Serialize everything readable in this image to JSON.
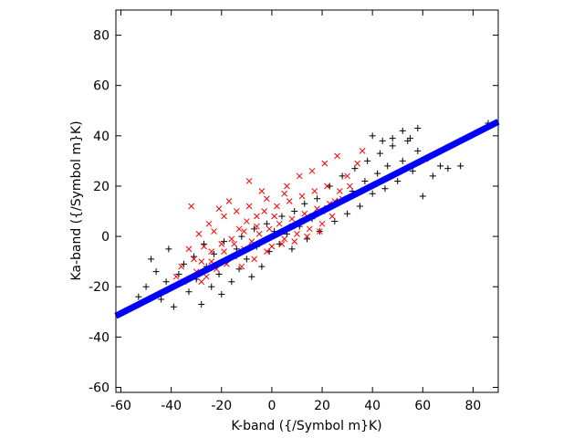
{
  "chart_data": {
    "type": "scatter",
    "xlabel": "K-band ({/Symbol m}K)",
    "ylabel": "Ka-band ({/Symbol m}K)",
    "xlim": [
      -62,
      90
    ],
    "ylim": [
      -62,
      90
    ],
    "xticks": [
      -60,
      -40,
      -20,
      0,
      20,
      40,
      60,
      80
    ],
    "yticks": [
      -60,
      -40,
      -20,
      0,
      20,
      40,
      60,
      80
    ],
    "grid": false,
    "legend": "none",
    "series": [
      {
        "marker": "+",
        "color": "#000000",
        "points": [
          [
            -55,
            -28
          ],
          [
            -53,
            -24
          ],
          [
            -50,
            -20
          ],
          [
            -48,
            -9
          ],
          [
            -46,
            -14
          ],
          [
            -44,
            -25
          ],
          [
            -42,
            -18
          ],
          [
            -41,
            -5
          ],
          [
            -39,
            -28
          ],
          [
            -37,
            -15
          ],
          [
            -35,
            -11
          ],
          [
            -33,
            -22
          ],
          [
            -31,
            -8
          ],
          [
            -30,
            -17
          ],
          [
            -28,
            -27
          ],
          [
            -27,
            -3
          ],
          [
            -26,
            -12
          ],
          [
            -24,
            -20
          ],
          [
            -23,
            -7
          ],
          [
            -21,
            -15
          ],
          [
            -20,
            -23
          ],
          [
            -19,
            -2
          ],
          [
            -18,
            -10
          ],
          [
            -16,
            -18
          ],
          [
            -14,
            -5
          ],
          [
            -13,
            -13
          ],
          [
            -12,
            0
          ],
          [
            -10,
            -9
          ],
          [
            -8,
            -16
          ],
          [
            -7,
            3
          ],
          [
            -6,
            -4
          ],
          [
            -4,
            -12
          ],
          [
            -2,
            5
          ],
          [
            -1,
            -6
          ],
          [
            1,
            2
          ],
          [
            3,
            -3
          ],
          [
            4,
            8
          ],
          [
            6,
            1
          ],
          [
            8,
            -5
          ],
          [
            9,
            10
          ],
          [
            11,
            4
          ],
          [
            13,
            13
          ],
          [
            14,
            -1
          ],
          [
            16,
            7
          ],
          [
            18,
            15
          ],
          [
            19,
            2
          ],
          [
            21,
            11
          ],
          [
            23,
            20
          ],
          [
            25,
            6
          ],
          [
            26,
            14
          ],
          [
            28,
            24
          ],
          [
            30,
            9
          ],
          [
            32,
            18
          ],
          [
            33,
            27
          ],
          [
            35,
            12
          ],
          [
            37,
            22
          ],
          [
            38,
            30
          ],
          [
            40,
            17
          ],
          [
            42,
            25
          ],
          [
            43,
            33
          ],
          [
            45,
            19
          ],
          [
            46,
            28
          ],
          [
            48,
            36
          ],
          [
            50,
            22
          ],
          [
            52,
            30
          ],
          [
            54,
            38
          ],
          [
            56,
            26
          ],
          [
            58,
            34
          ],
          [
            60,
            16
          ],
          [
            62,
            31
          ],
          [
            64,
            24
          ],
          [
            67,
            28
          ],
          [
            70,
            27
          ],
          [
            75,
            28
          ],
          [
            86,
            45
          ],
          [
            40,
            40
          ],
          [
            44,
            38
          ],
          [
            48,
            39
          ],
          [
            52,
            42
          ],
          [
            55,
            39
          ],
          [
            58,
            43
          ]
        ]
      },
      {
        "marker": "x",
        "color": "#ff0000",
        "points": [
          [
            -32,
            12
          ],
          [
            -35,
            -18
          ],
          [
            -30,
            -14
          ],
          [
            -28,
            -10
          ],
          [
            -26,
            -16
          ],
          [
            -24,
            -6
          ],
          [
            -22,
            -13
          ],
          [
            -20,
            -3
          ],
          [
            -18,
            -11
          ],
          [
            -16,
            -1
          ],
          [
            -15,
            -8
          ],
          [
            -13,
            3
          ],
          [
            -11,
            -5
          ],
          [
            -10,
            6
          ],
          [
            -8,
            -2
          ],
          [
            -6,
            8
          ],
          [
            -5,
            1
          ],
          [
            -3,
            10
          ],
          [
            -1,
            3
          ],
          [
            0,
            -4
          ],
          [
            2,
            12
          ],
          [
            3,
            5
          ],
          [
            5,
            -1
          ],
          [
            7,
            14
          ],
          [
            8,
            7
          ],
          [
            10,
            1
          ],
          [
            12,
            16
          ],
          [
            13,
            9
          ],
          [
            15,
            3
          ],
          [
            17,
            18
          ],
          [
            18,
            11
          ],
          [
            20,
            5
          ],
          [
            22,
            20
          ],
          [
            23,
            13
          ],
          [
            -9,
            12
          ],
          [
            -14,
            10
          ],
          [
            -19,
            8
          ],
          [
            -23,
            2
          ],
          [
            -27,
            -4
          ],
          [
            -31,
            -9
          ],
          [
            -12,
            -12
          ],
          [
            -7,
            -9
          ],
          [
            -2,
            -6
          ],
          [
            4,
            -3
          ],
          [
            9,
            -2
          ],
          [
            14,
            0
          ],
          [
            19,
            2
          ],
          [
            24,
            8
          ],
          [
            28,
            15
          ],
          [
            30,
            24
          ],
          [
            34,
            29
          ],
          [
            36,
            34
          ],
          [
            -4,
            18
          ],
          [
            -9,
            22
          ],
          [
            6,
            20
          ],
          [
            11,
            24
          ],
          [
            16,
            26
          ],
          [
            21,
            29
          ],
          [
            26,
            32
          ],
          [
            -17,
            14
          ],
          [
            -21,
            11
          ],
          [
            -25,
            5
          ],
          [
            -29,
            1
          ],
          [
            -33,
            -5
          ],
          [
            -36,
            -12
          ],
          [
            -38,
            -16
          ],
          [
            1,
            8
          ],
          [
            -2,
            15
          ],
          [
            5,
            17
          ],
          [
            -6,
            4
          ],
          [
            -11,
            2
          ],
          [
            -15,
            -3
          ],
          [
            -19,
            -6
          ],
          [
            -24,
            -10
          ],
          [
            -28,
            -18
          ],
          [
            8,
            4
          ],
          [
            12,
            6
          ],
          [
            16,
            8
          ],
          [
            20,
            10
          ],
          [
            25,
            14
          ],
          [
            27,
            18
          ],
          [
            31,
            20
          ]
        ]
      }
    ],
    "fit_line": {
      "color": "#0000ff",
      "x": [
        -62,
        90
      ],
      "y": [
        -31.6,
        45.6
      ]
    }
  }
}
